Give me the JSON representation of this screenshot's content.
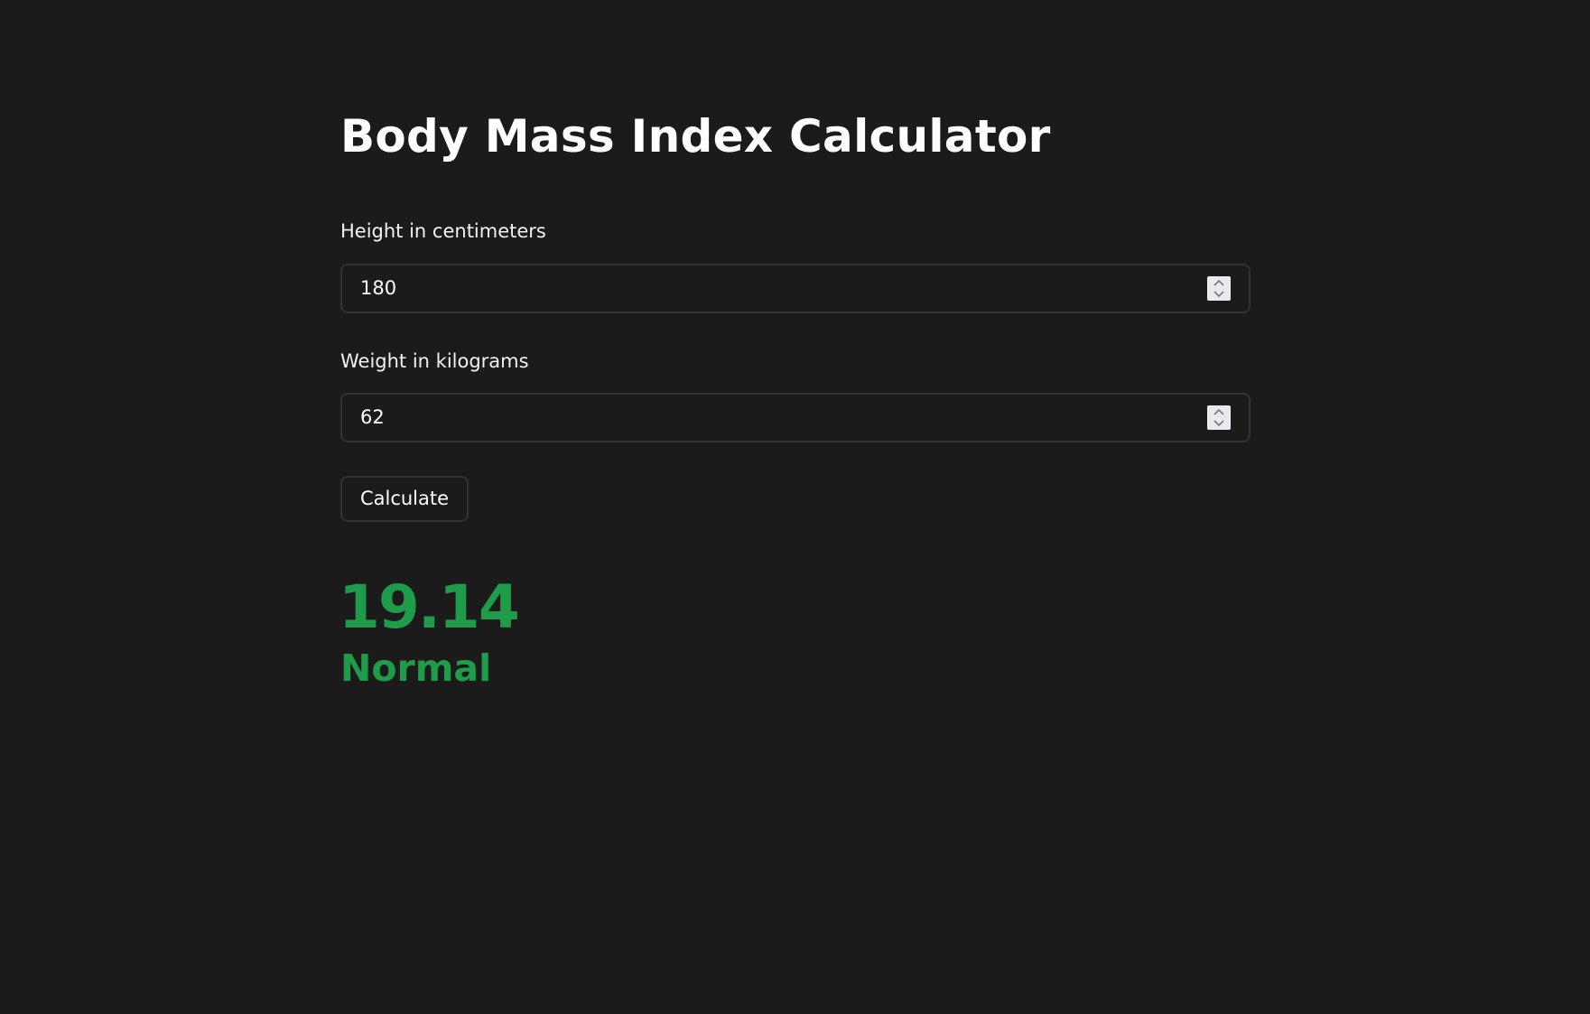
{
  "page": {
    "title": "Body Mass Index Calculator"
  },
  "form": {
    "height": {
      "label": "Height in centimeters",
      "value": "180"
    },
    "weight": {
      "label": "Weight in kilograms",
      "value": "62"
    },
    "submit_label": "Calculate"
  },
  "result": {
    "bmi": "19.14",
    "category": "Normal",
    "color": "#1f9c4a"
  },
  "theme": {
    "background": "#1b1b1b",
    "text": "#ffffff",
    "border": "#333333"
  },
  "icons": {
    "spinner": "spinner-arrows-icon"
  }
}
